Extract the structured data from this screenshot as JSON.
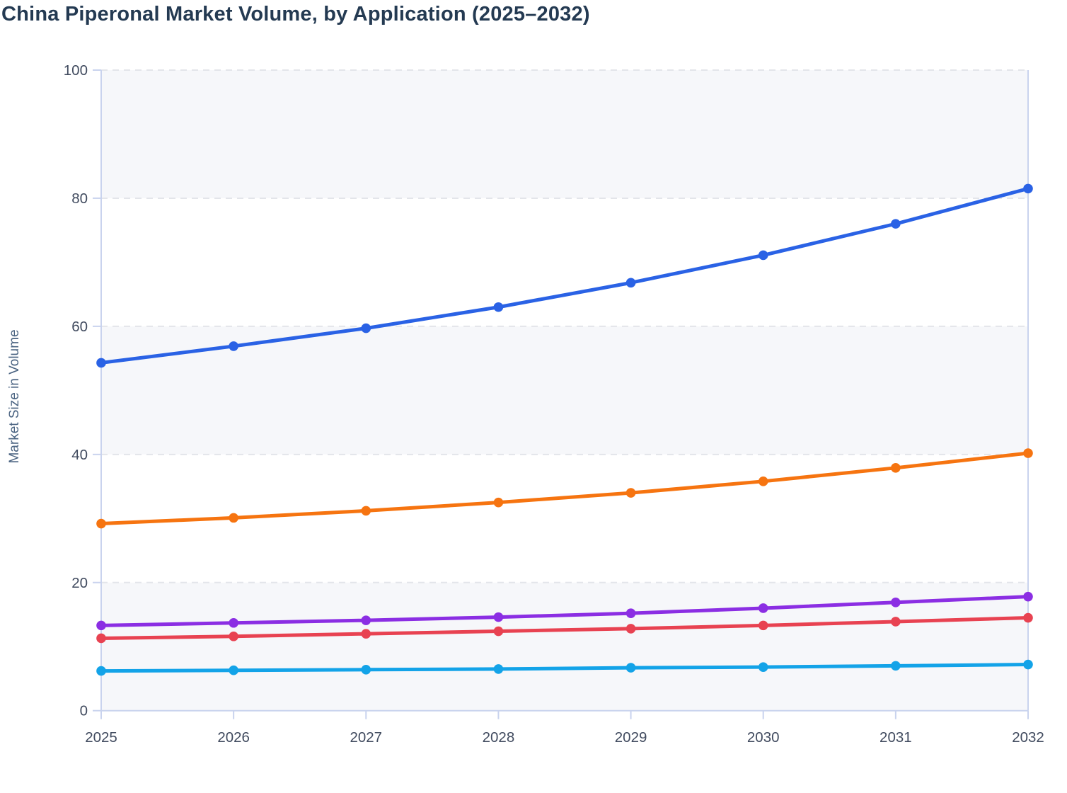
{
  "title": "China Piperonal Market Volume, by Application (2025–2032)",
  "chart_data": {
    "type": "line",
    "title": "China Piperonal Market Volume, by Application (2025–2032)",
    "xlabel": "",
    "ylabel": "Market Size in Volume",
    "x": [
      2025,
      2026,
      2027,
      2028,
      2029,
      2030,
      2031,
      2032
    ],
    "ylim": [
      0,
      100
    ],
    "yticks": [
      0,
      20,
      40,
      60,
      80,
      100
    ],
    "grid": "horizontal-dashed",
    "legend": "none",
    "plot_bands": "alternating shaded bands between gridlines (100-80, 60-40, 20-0 shaded)",
    "markers": "filled circles on every data point",
    "series": [
      {
        "id": "blue",
        "color": "#2a62e5",
        "values": [
          54.3,
          56.9,
          59.7,
          63.0,
          66.8,
          71.1,
          76.0,
          81.5
        ]
      },
      {
        "id": "orange",
        "color": "#f67410",
        "values": [
          29.2,
          30.1,
          31.2,
          32.5,
          34.0,
          35.8,
          37.9,
          40.2
        ]
      },
      {
        "id": "purple",
        "color": "#8b2ee3",
        "values": [
          13.3,
          13.7,
          14.1,
          14.6,
          15.2,
          16.0,
          16.9,
          17.8
        ]
      },
      {
        "id": "red",
        "color": "#e84251",
        "values": [
          11.3,
          11.6,
          12.0,
          12.4,
          12.8,
          13.3,
          13.9,
          14.5
        ]
      },
      {
        "id": "cyan",
        "color": "#13a3e8",
        "values": [
          6.2,
          6.3,
          6.4,
          6.5,
          6.7,
          6.8,
          7.0,
          7.2
        ]
      }
    ]
  },
  "style": {
    "title_color": "#243a52",
    "tick_label_color": "#414b5f",
    "y_axis_title_color": "#4b6482",
    "axis_line_color": "#c9d3ee",
    "gridline_color": "#e3e5ea",
    "band_fill_color": "#f6f7fa",
    "background_color": "#ffffff"
  }
}
